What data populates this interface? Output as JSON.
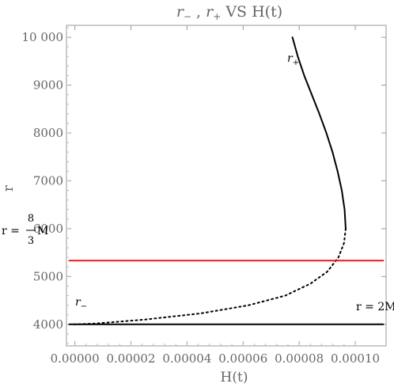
{
  "chart_data": {
    "type": "line",
    "title": {
      "part1": "r",
      "sub1": "−",
      "sep": " , ",
      "part2": "r",
      "sub2": "+",
      "rest": " VS H(t)"
    },
    "xlabel": "H(t)",
    "ylabel": "r",
    "xlim": [
      -3e-06,
      0.000111
    ],
    "ylim": [
      3550,
      10250
    ],
    "xticks": [
      0.0,
      2e-05,
      4e-05,
      6e-05,
      8e-05,
      0.0001
    ],
    "xtick_labels": [
      "0.00000",
      "0.00002",
      "0.00004",
      "0.00006",
      "0.00008",
      "0.00010"
    ],
    "yticks": [
      4000,
      5000,
      6000,
      7000,
      8000,
      9000,
      10000
    ],
    "ytick_labels": [
      "4000",
      "5000",
      "6000",
      "7000",
      "8000",
      "9000",
      "10 000"
    ],
    "series": [
      {
        "name": "r+",
        "style": "solid",
        "color": "#000000",
        "x": [
          7.76e-05,
          7.95e-05,
          8.18e-05,
          8.45e-05,
          8.72e-05,
          8.97e-05,
          9.19e-05,
          9.37e-05,
          9.52e-05,
          9.62e-05,
          9.66e-05
        ],
        "y": [
          10000,
          9600,
          9200,
          8800,
          8400,
          8000,
          7600,
          7200,
          6800,
          6400,
          6000
        ]
      },
      {
        "name": "r−",
        "style": "dotted",
        "color": "#000000",
        "x": [
          9.66e-05,
          9.6e-05,
          9.4e-05,
          9e-05,
          8.4e-05,
          7.5e-05,
          6.2e-05,
          4.5e-05,
          2.5e-05,
          8e-06,
          0.0
        ],
        "y": [
          6000,
          5700,
          5400,
          5100,
          4850,
          4600,
          4400,
          4230,
          4100,
          4020,
          4000
        ]
      },
      {
        "name": "r = 8/3 M",
        "style": "solid",
        "color": "#e31a1c",
        "x": [
          -2e-06,
          0.00011
        ],
        "y": [
          5333.33,
          5333.33
        ]
      },
      {
        "name": "r = 2M",
        "style": "solid",
        "color": "#000000",
        "x": [
          -2e-06,
          0.00011
        ],
        "y": [
          4000,
          4000
        ]
      }
    ],
    "annotations": {
      "r_plus": {
        "base": "r",
        "sub": "+",
        "x": 7.8e-05,
        "y": 9550
      },
      "r_minus": {
        "base": "r",
        "sub": "−",
        "x": 0.0,
        "y": 4400
      },
      "r_2m": {
        "text": "r = 2M",
        "x": 0.000108,
        "y": 4300
      },
      "r_8_3m": {
        "prefix": "r = ",
        "numerator": "8",
        "denominator": "3",
        "suffix": "M"
      }
    },
    "grid": false,
    "legend": "none"
  }
}
